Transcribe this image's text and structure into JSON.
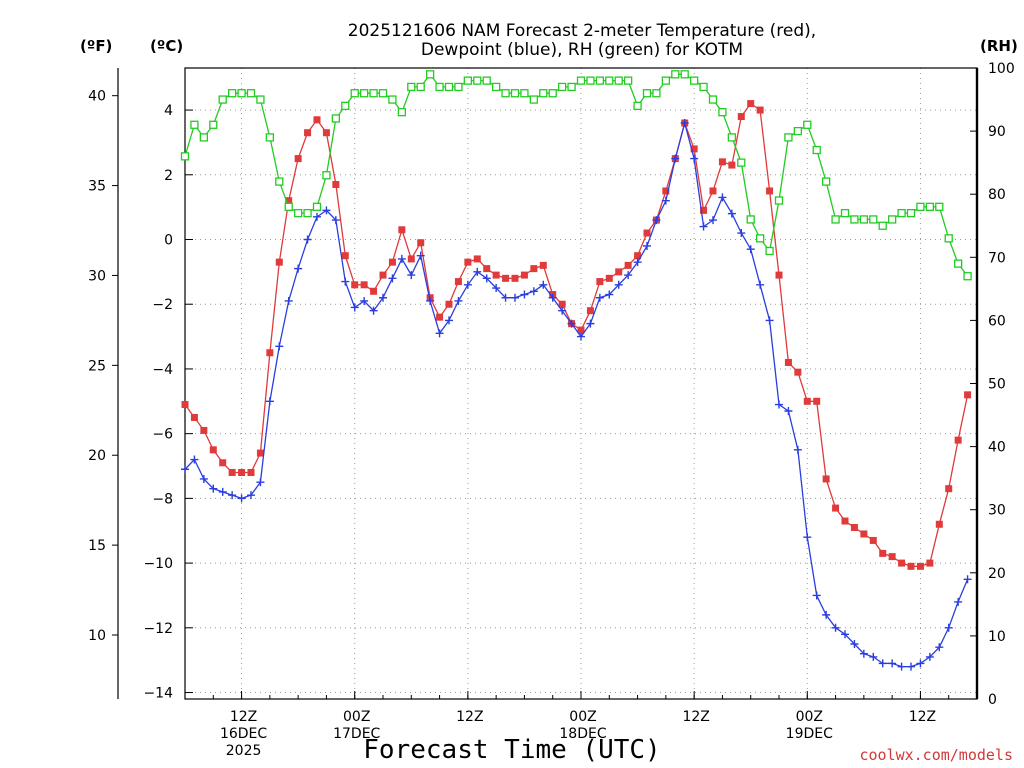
{
  "chart_data": {
    "type": "line",
    "title": "2025121606 NAM Forecast 2-meter Temperature (red),",
    "subtitle": "Dewpoint (blue), RH (green) for KOTM",
    "xlabel": "Forecast Time (UTC)",
    "credit": "coolwx.com/models",
    "units": {
      "fahrenheit": "(ºF)",
      "celsius": "(ºC)",
      "rh": "(RH)"
    },
    "x_start_hours": 6,
    "x_end_hours": 90,
    "x_step_hours": 1,
    "x_ticks": [
      {
        "hour": 12,
        "lines": [
          "12Z",
          "16DEC",
          "2025"
        ]
      },
      {
        "hour": 24,
        "lines": [
          "00Z",
          "17DEC"
        ]
      },
      {
        "hour": 36,
        "lines": [
          "12Z"
        ]
      },
      {
        "hour": 48,
        "lines": [
          "00Z",
          "18DEC"
        ]
      },
      {
        "hour": 60,
        "lines": [
          "12Z"
        ]
      },
      {
        "hour": 72,
        "lines": [
          "00Z",
          "19DEC"
        ]
      },
      {
        "hour": 84,
        "lines": [
          "12Z"
        ]
      }
    ],
    "y_celsius": {
      "range": [
        -14.2,
        5.3
      ],
      "ticks": [
        4,
        2,
        0,
        -2,
        -4,
        -6,
        -8,
        -10,
        -12,
        -14
      ]
    },
    "y_fahrenheit": {
      "ticks": [
        40,
        35,
        30,
        25,
        20,
        15,
        10
      ]
    },
    "y_rh": {
      "range": [
        0,
        100
      ],
      "ticks": [
        100,
        90,
        80,
        70,
        60,
        50,
        40,
        30,
        20,
        10,
        0
      ]
    },
    "grid": true,
    "colors": {
      "temperature": "#e03a3a",
      "dewpoint": "#2a3ee0",
      "rh": "#22cc22"
    },
    "series": [
      {
        "key": "temperature",
        "axis": "celsius",
        "marker": "filled-square",
        "values": [
          -5.1,
          -5.5,
          -5.9,
          -6.5,
          -6.9,
          -7.2,
          -7.2,
          -7.2,
          -6.6,
          -3.5,
          -0.7,
          1.2,
          2.5,
          3.3,
          3.7,
          3.3,
          1.7,
          -0.5,
          -1.4,
          -1.4,
          -1.6,
          -1.1,
          -0.7,
          0.3,
          -0.6,
          -0.1,
          -1.8,
          -2.4,
          -2.0,
          -1.3,
          -0.7,
          -0.6,
          -0.9,
          -1.1,
          -1.2,
          -1.2,
          -1.1,
          -0.9,
          -0.8,
          -1.7,
          -2.0,
          -2.6,
          -2.8,
          -2.2,
          -1.3,
          -1.2,
          -1.0,
          -0.8,
          -0.5,
          0.2,
          0.6,
          1.5,
          2.5,
          3.6,
          2.8,
          0.9,
          1.5,
          2.4,
          2.3,
          3.8,
          4.2,
          4.0,
          1.5,
          -1.1,
          -3.8,
          -4.1,
          -5.0,
          -5.0,
          -7.4,
          -8.3,
          -8.7,
          -8.9,
          -9.1,
          -9.3,
          -9.7,
          -9.8,
          -10.0,
          -10.1,
          -10.1,
          -10.0,
          -8.8,
          -7.7,
          -6.2,
          -4.8
        ]
      },
      {
        "key": "dewpoint",
        "axis": "celsius",
        "marker": "plus",
        "values": [
          -7.1,
          -6.8,
          -7.4,
          -7.7,
          -7.8,
          -7.9,
          -8.0,
          -7.9,
          -7.5,
          -5.0,
          -3.3,
          -1.9,
          -0.9,
          0.0,
          0.7,
          0.9,
          0.6,
          -1.3,
          -2.1,
          -1.9,
          -2.2,
          -1.8,
          -1.2,
          -0.6,
          -1.1,
          -0.5,
          -1.9,
          -2.9,
          -2.5,
          -1.9,
          -1.4,
          -1.0,
          -1.2,
          -1.5,
          -1.8,
          -1.8,
          -1.7,
          -1.6,
          -1.4,
          -1.8,
          -2.2,
          -2.6,
          -3.0,
          -2.6,
          -1.8,
          -1.7,
          -1.4,
          -1.1,
          -0.7,
          -0.2,
          0.6,
          1.2,
          2.5,
          3.6,
          2.5,
          0.4,
          0.6,
          1.3,
          0.8,
          0.2,
          -0.3,
          -1.4,
          -2.5,
          -5.1,
          -5.3,
          -6.5,
          -9.2,
          -11.0,
          -11.6,
          -12.0,
          -12.2,
          -12.5,
          -12.8,
          -12.9,
          -13.1,
          -13.1,
          -13.2,
          -13.2,
          -13.1,
          -12.9,
          -12.6,
          -12.0,
          -11.2,
          -10.5
        ]
      },
      {
        "key": "rh",
        "axis": "rh",
        "marker": "open-square",
        "values": [
          86,
          91,
          89,
          91,
          95,
          96,
          96,
          96,
          95,
          89,
          82,
          78,
          77,
          77,
          78,
          83,
          92,
          94,
          96,
          96,
          96,
          96,
          95,
          93,
          97,
          97,
          99,
          97,
          97,
          97,
          98,
          98,
          98,
          97,
          96,
          96,
          96,
          95,
          96,
          96,
          97,
          97,
          98,
          98,
          98,
          98,
          98,
          98,
          94,
          96,
          96,
          98,
          99,
          99,
          98,
          97,
          95,
          93,
          89,
          85,
          76,
          73,
          71,
          79,
          89,
          90,
          91,
          87,
          82,
          76,
          77,
          76,
          76,
          76,
          75,
          76,
          77,
          77,
          78,
          78,
          78,
          73,
          69,
          67
        ]
      }
    ]
  }
}
